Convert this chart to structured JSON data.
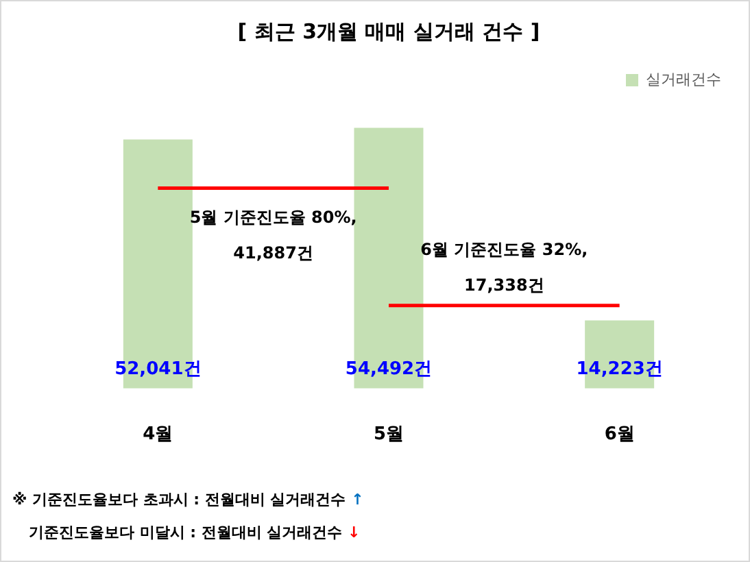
{
  "chart_data": {
    "type": "bar",
    "title": "[ 최근 3개월 매매 실거래 건수 ]",
    "categories": [
      "4월",
      "5월",
      "6월"
    ],
    "series": [
      {
        "name": "실거래건수",
        "color": "#c5e0b4",
        "values": [
          52041,
          54492,
          14223
        ],
        "value_labels": [
          "52,041건",
          "54,492건",
          "14,223건"
        ]
      },
      {
        "type": "line",
        "color": "#ff0000",
        "values": [
          41887,
          41887,
          null
        ]
      },
      {
        "type": "line",
        "color": "#ff0000",
        "values": [
          null,
          17338,
          17338
        ]
      }
    ],
    "legend": "top right",
    "annotations": [
      {
        "text": "5월 기준진도율 80%,\n41,887건",
        "x": "4월",
        "y": 41887
      },
      {
        "text": "6월 기준진도율 32%,\n17,338건",
        "x": "5월",
        "y": 17338
      },
      "※ 기준진도율보다 초과시 : 전월대비 실거래건수 ↑",
      "기준진도율보다 미달시 : 전월대비 실거래건수 ↓"
    ]
  }
}
